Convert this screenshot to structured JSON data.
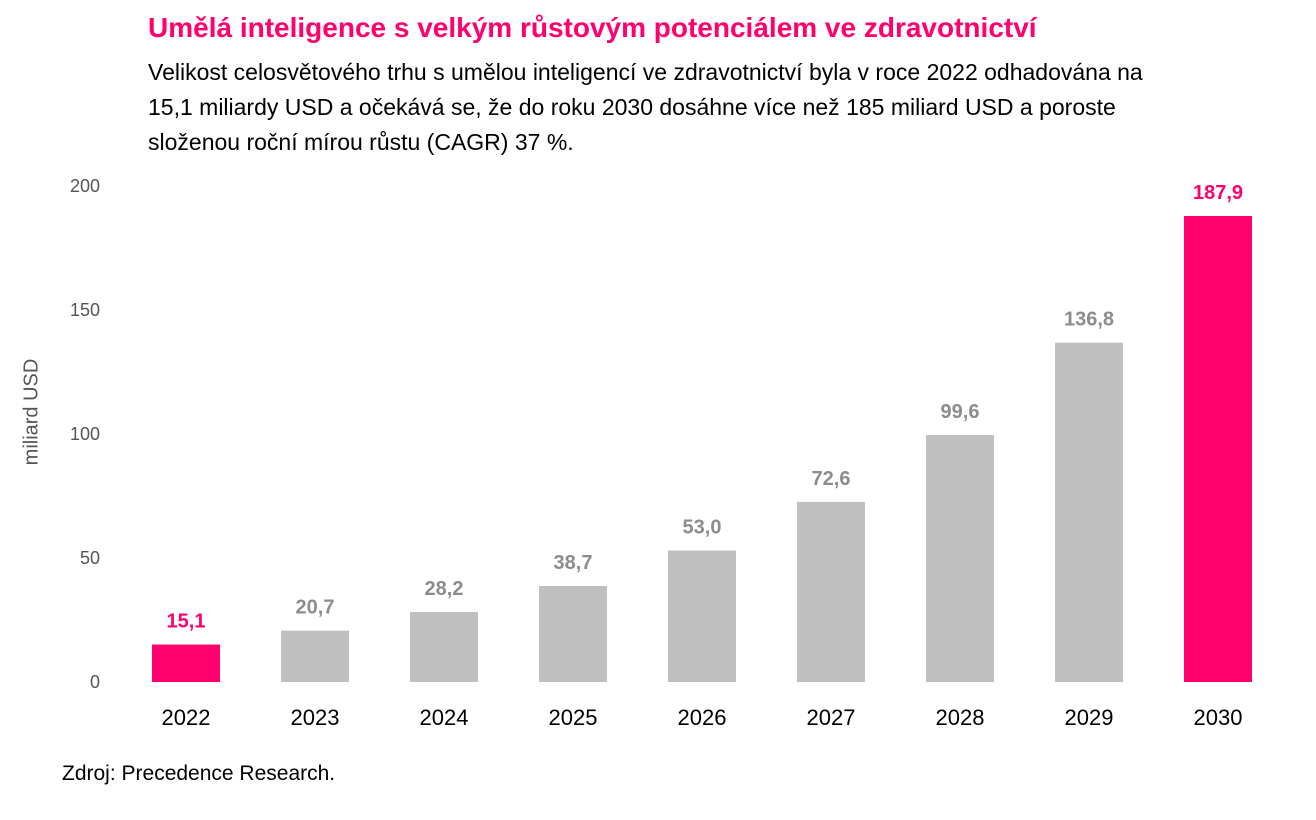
{
  "chart_data": {
    "type": "bar",
    "title": "Umělá inteligence s velkým růstovým potenciálem ve zdravotnictví",
    "subtitle": "Velikost celosvětového trhu s umělou inteligencí ve zdravotnictví byla v roce 2022 odhadována na 15,1 miliardy USD a očekává se, že do roku 2030 dosáhne více než 185 miliard USD a poroste složenou roční mírou růstu (CAGR) 37 %.",
    "ylabel": "miliard USD",
    "ylim": [
      0,
      200
    ],
    "yticks": [
      "0",
      "50",
      "100",
      "150",
      "200"
    ],
    "ytick_values": [
      0,
      50,
      100,
      150,
      200
    ],
    "categories": [
      "2022",
      "2023",
      "2024",
      "2025",
      "2026",
      "2027",
      "2028",
      "2029",
      "2030"
    ],
    "values": [
      15.1,
      20.7,
      28.2,
      38.7,
      53.0,
      72.6,
      99.6,
      136.8,
      187.9
    ],
    "value_labels": [
      "15,1",
      "20,7",
      "28,2",
      "38,7",
      "53,0",
      "72,6",
      "99,6",
      "136,8",
      "187,9"
    ],
    "highlighted": [
      true,
      false,
      false,
      false,
      false,
      false,
      false,
      false,
      true
    ],
    "grid": false,
    "legend": "none"
  },
  "colors": {
    "highlight": "#ff006e",
    "bar": "#bfbfbf",
    "label_gray": "#8c8c8c",
    "axis_text": "#555555"
  },
  "source": "Zdroj: Precedence Research."
}
